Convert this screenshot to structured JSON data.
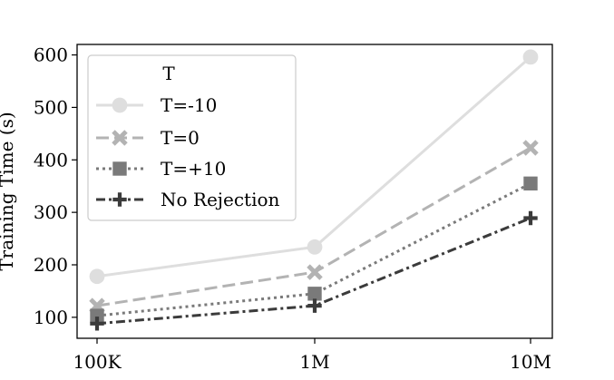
{
  "chart_data": {
    "type": "line",
    "title": "",
    "xlabel": "",
    "ylabel": "Training Time (s)",
    "categories": [
      "100K",
      "1M",
      "10M"
    ],
    "ylim": [
      60,
      620
    ],
    "yticks": [
      100,
      200,
      300,
      400,
      500,
      600
    ],
    "ytick_labels": [
      "100",
      "200",
      "300",
      "400",
      "500",
      "600"
    ],
    "grid": false,
    "legend_title": "T",
    "legend_position": "top-left",
    "series": [
      {
        "name": "T=-10",
        "values": [
          178,
          234,
          596
        ],
        "color": "#dedede",
        "marker": "circle",
        "dash": "solid"
      },
      {
        "name": "T=0",
        "values": [
          122,
          186,
          423
        ],
        "color": "#b3b3b3",
        "marker": "x",
        "dash": "dashed"
      },
      {
        "name": "T=+10",
        "values": [
          103,
          145,
          355
        ],
        "color": "#7a7a7a",
        "marker": "square",
        "dash": "dotted"
      },
      {
        "name": "No Rejection",
        "values": [
          88,
          122,
          289
        ],
        "color": "#3b3b3b",
        "marker": "plus",
        "dash": "dashdot"
      }
    ]
  }
}
